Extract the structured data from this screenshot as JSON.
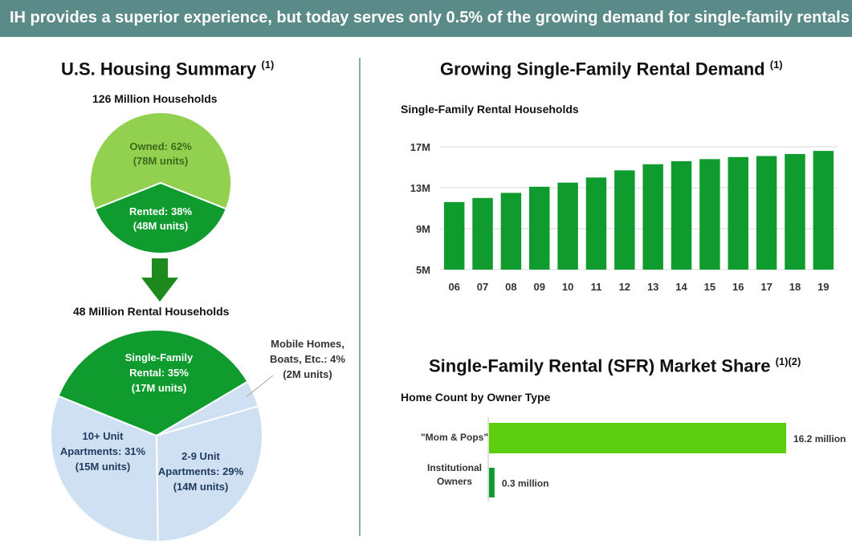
{
  "banner": "IH provides a superior experience, but today serves only 0.5% of the growing demand for single-family rentals",
  "left": {
    "title": "U.S. Housing Summary",
    "title_note": "(1)",
    "total_label": "126 Million Households",
    "rental_label": "48 Million Rental Households"
  },
  "right": {
    "demand_title": "Growing Single-Family Rental Demand",
    "demand_note": "(1)",
    "demand_subtitle": "Single-Family Rental Households",
    "share_title": "Single-Family Rental (SFR) Market Share",
    "share_note": "(1)(2)",
    "share_subtitle": "Home Count by Owner Type"
  },
  "colors": {
    "banner": "#5b8b88",
    "light_green": "#92d050",
    "dark_green": "#0f9b2e",
    "bright_green": "#5ccd0f",
    "light_blue": "#cfe0f3"
  },
  "chart_data": [
    {
      "type": "pie",
      "name": "households",
      "slices": [
        {
          "label": "Owned: 62%",
          "sublabel": "(78M units)",
          "value": 62,
          "color": "#92d050"
        },
        {
          "label": "Rented: 38%",
          "sublabel": "(48M units)",
          "value": 38,
          "color": "#0f9b2e"
        }
      ]
    },
    {
      "type": "pie",
      "name": "rental_households",
      "slices": [
        {
          "label": "Single-Family",
          "label2": "Rental: 35%",
          "sublabel": "(17M units)",
          "value": 35,
          "color": "#0f9b2e"
        },
        {
          "label": "Mobile Homes,",
          "label2": "Boats, Etc.: 4%",
          "sublabel": "(2M units)",
          "value": 4,
          "color": "#cfe0f3"
        },
        {
          "label": "2-9 Unit",
          "label2": "Apartments: 29%",
          "sublabel": "(14M units)",
          "value": 29,
          "color": "#cfe0f3"
        },
        {
          "label": "10+ Unit",
          "label2": "Apartments: 31%",
          "sublabel": "(15M units)",
          "value": 31,
          "color": "#cfe0f3"
        }
      ]
    },
    {
      "type": "bar",
      "name": "sfr_demand",
      "categories": [
        "06",
        "07",
        "08",
        "09",
        "10",
        "11",
        "12",
        "13",
        "14",
        "15",
        "16",
        "17",
        "18",
        "19"
      ],
      "values": [
        11.6,
        12.0,
        12.5,
        13.1,
        13.5,
        14.0,
        14.7,
        15.3,
        15.6,
        15.8,
        16.0,
        16.1,
        16.3,
        16.6
      ],
      "ylim": [
        5,
        17
      ],
      "yticks": [
        5,
        9,
        13,
        17
      ],
      "ytick_labels": [
        "5M",
        "9M",
        "13M",
        "17M"
      ],
      "grid": true,
      "color": "#0f9b2e"
    },
    {
      "type": "bar",
      "orientation": "horizontal",
      "name": "market_share",
      "categories": [
        "\"Mom & Pops\"",
        "Institutional Owners"
      ],
      "category_lines": [
        [
          "\"Mom & Pops\""
        ],
        [
          "Institutional",
          "Owners"
        ]
      ],
      "values": [
        16.2,
        0.3
      ],
      "value_labels": [
        "16.2 million",
        "0.3 million"
      ],
      "colors": [
        "#5ccd0f",
        "#0f9b2e"
      ]
    }
  ]
}
